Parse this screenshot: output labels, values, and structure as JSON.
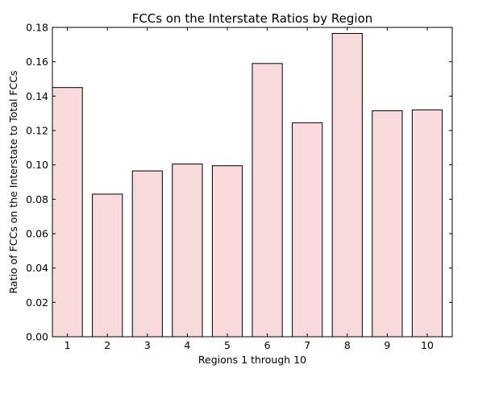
{
  "chart_data": {
    "type": "bar",
    "title": "FCCs on the Interstate Ratios by Region",
    "xlabel": "Regions 1 through 10",
    "ylabel": "Ratio of FCCs on the Interstate to Total FCCs",
    "categories": [
      "1",
      "2",
      "3",
      "4",
      "5",
      "6",
      "7",
      "8",
      "9",
      "10"
    ],
    "values": [
      0.145,
      0.083,
      0.0965,
      0.1005,
      0.0995,
      0.159,
      0.1245,
      0.1765,
      0.1315,
      0.132
    ],
    "ylim": [
      0,
      0.18
    ],
    "yticks": [
      "0.00",
      "0.02",
      "0.04",
      "0.06",
      "0.08",
      "0.10",
      "0.12",
      "0.14",
      "0.16",
      "0.18"
    ],
    "bar_color": "#f8dadd",
    "edge_color": "#000000",
    "grid": false,
    "legend": "none"
  }
}
